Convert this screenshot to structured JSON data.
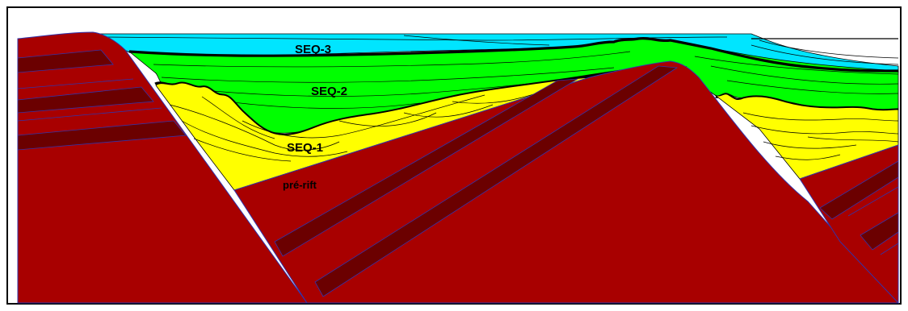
{
  "labels": {
    "seq3": "SEQ-3",
    "seq2": "SEQ-2",
    "seq1": "SEQ-1",
    "prerift": "pré-rift"
  },
  "colors": {
    "basement": "#a80000",
    "basement_band": "#6b0000",
    "seq1": "#ffff00",
    "seq2": "#00ff00",
    "seq3": "#00e5ff",
    "outline": "#000000",
    "fault_line": "#3333aa"
  }
}
